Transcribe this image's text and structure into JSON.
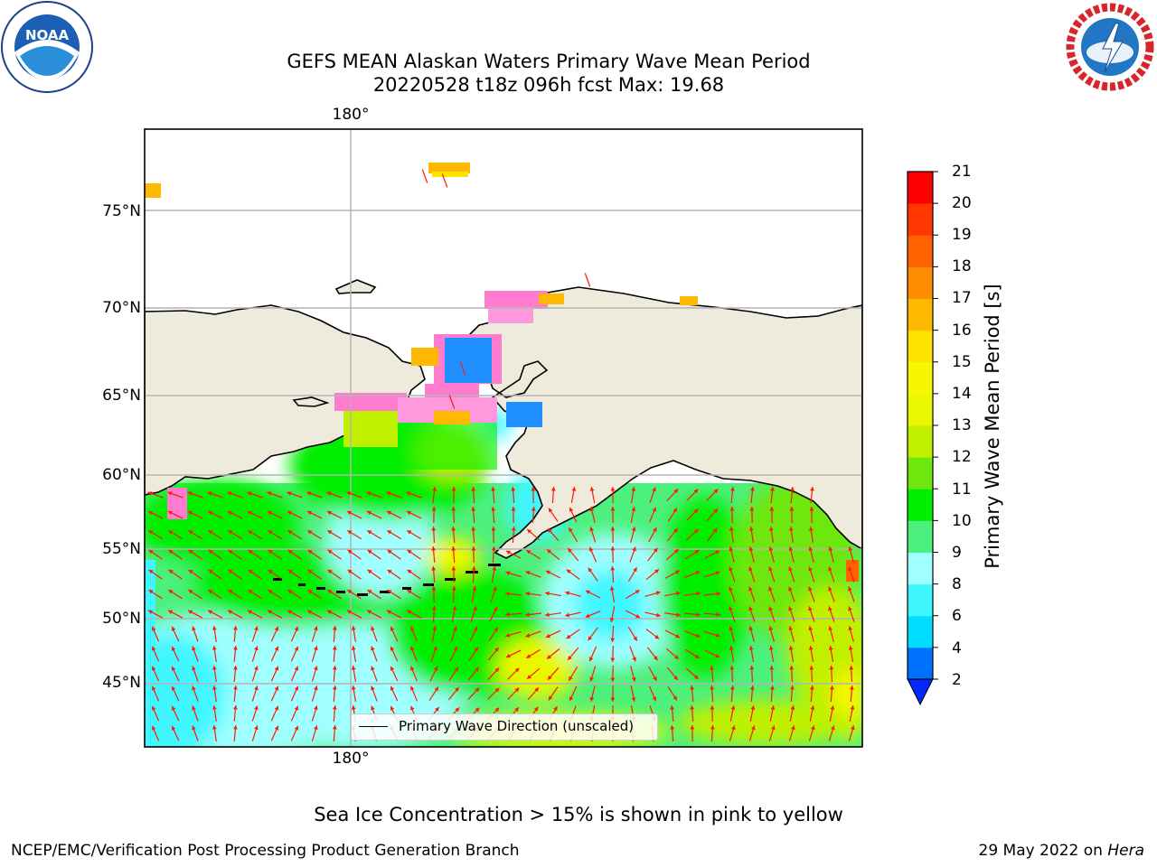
{
  "title": {
    "line1": "GEFS MEAN Alaskan Waters Primary Wave Mean Period",
    "line2": "20220528 t18z 096h fcst   Max: 19.68"
  },
  "logos": {
    "left": {
      "name": "NOAA",
      "text": "NOAA",
      "ring_text": "NATIONAL OCEANIC AND ATMOSPHERIC ADMINISTRATION · U.S. DEPARTMENT OF COMMERCE"
    },
    "right": {
      "name": "National Weather Service",
      "ring_text": "NATIONAL WEATHER SERVICE"
    }
  },
  "map": {
    "lat_labels": [
      "75°N",
      "70°N",
      "65°N",
      "60°N",
      "55°N",
      "50°N",
      "45°N"
    ],
    "lon_label_top": "180°",
    "lon_label_bottom": "180°",
    "land_color": "#efebdc",
    "gridline_color": "#b4b4b4",
    "arrow_color": "#ff1a00",
    "legend_label": "Primary Wave Direction (unscaled)"
  },
  "colorbar": {
    "label": "Primary Wave Mean Period [s]",
    "ticks": [
      "21",
      "20",
      "19",
      "18",
      "17",
      "16",
      "15",
      "14",
      "13",
      "12",
      "11",
      "10",
      "9",
      "8",
      "6",
      "4",
      "2"
    ],
    "colors_bottom_to_top": [
      "#0070ff",
      "#00ddff",
      "#40f7ff",
      "#a0ffff",
      "#4cf07c",
      "#00ee00",
      "#6de70d",
      "#c0f000",
      "#e9f700",
      "#f7f700",
      "#ffe300",
      "#ffb800",
      "#ff8c00",
      "#ff6200",
      "#ff3700",
      "#ff0000"
    ],
    "under_color": "#0028ff"
  },
  "footer": {
    "note": "Sea Ice Concentration > 15% is shown in pink to yellow",
    "left": "NCEP/EMC/Verification Post Processing Product Generation Branch",
    "right_date": "29 May 2022 on",
    "right_host": "Hera"
  }
}
